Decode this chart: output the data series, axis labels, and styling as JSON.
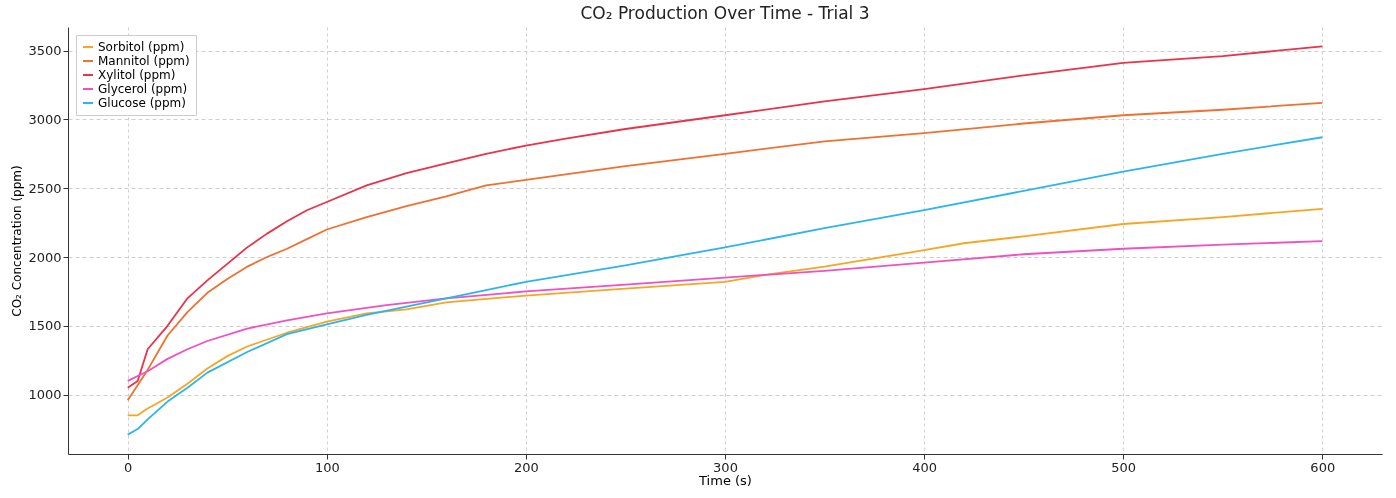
{
  "chart_data": {
    "type": "line",
    "title": "CO₂ Production Over Time - Trial 3",
    "xlabel": "Time (s)",
    "ylabel": "CO₂ Concentration (ppm)",
    "xlim": [
      -30,
      630
    ],
    "xticks": [
      0,
      100,
      200,
      300,
      400,
      500,
      600
    ],
    "ylim": [
      569,
      3671
    ],
    "yticks": [
      1000,
      1500,
      2000,
      2500,
      3000,
      3500
    ],
    "grid": true,
    "legend": "top left",
    "line_style": "solid",
    "marker": "none",
    "series": [
      {
        "name": "Sorbitol (ppm)",
        "color": "#f5a623",
        "x": [
          0,
          5,
          10,
          20,
          30,
          40,
          50,
          60,
          80,
          100,
          120,
          140,
          160,
          200,
          250,
          300,
          320,
          350,
          400,
          420,
          450,
          500,
          550,
          600
        ],
        "values": [
          850,
          850,
          900,
          980,
          1080,
          1190,
          1280,
          1350,
          1450,
          1530,
          1590,
          1620,
          1670,
          1720,
          1770,
          1820,
          1870,
          1930,
          2050,
          2100,
          2150,
          2240,
          2290,
          2350
        ]
      },
      {
        "name": "Mannitol (ppm)",
        "color": "#f07030",
        "x": [
          0,
          10,
          20,
          30,
          40,
          50,
          60,
          70,
          80,
          90,
          100,
          120,
          140,
          160,
          180,
          200,
          250,
          300,
          350,
          400,
          450,
          500,
          550,
          600
        ],
        "values": [
          960,
          1180,
          1430,
          1600,
          1740,
          1840,
          1930,
          2000,
          2060,
          2130,
          2200,
          2290,
          2370,
          2440,
          2520,
          2560,
          2660,
          2750,
          2840,
          2900,
          2970,
          3030,
          3070,
          3120
        ]
      },
      {
        "name": "Xylitol (ppm)",
        "color": "#e8334a",
        "x": [
          0,
          5,
          10,
          20,
          30,
          40,
          50,
          60,
          70,
          80,
          90,
          100,
          120,
          140,
          160,
          180,
          200,
          220,
          250,
          300,
          350,
          400,
          450,
          500,
          550,
          600
        ],
        "values": [
          1050,
          1100,
          1330,
          1500,
          1700,
          1830,
          1950,
          2070,
          2170,
          2260,
          2340,
          2400,
          2520,
          2610,
          2680,
          2750,
          2810,
          2860,
          2930,
          3030,
          3130,
          3220,
          3320,
          3410,
          3460,
          3530
        ]
      },
      {
        "name": "Glycerol (ppm)",
        "color": "#f050c0",
        "x": [
          0,
          10,
          20,
          30,
          40,
          60,
          80,
          100,
          130,
          160,
          200,
          250,
          300,
          350,
          400,
          450,
          500,
          550,
          600
        ],
        "values": [
          1100,
          1170,
          1260,
          1330,
          1390,
          1480,
          1540,
          1590,
          1650,
          1700,
          1750,
          1800,
          1850,
          1900,
          1960,
          2020,
          2060,
          2090,
          2115
        ]
      },
      {
        "name": "Glucose (ppm)",
        "color": "#2bb5ef",
        "x": [
          0,
          5,
          10,
          20,
          30,
          40,
          60,
          80,
          100,
          120,
          140,
          160,
          180,
          200,
          250,
          300,
          350,
          400,
          450,
          500,
          550,
          600
        ],
        "values": [
          710,
          750,
          820,
          950,
          1050,
          1160,
          1310,
          1440,
          1510,
          1580,
          1640,
          1700,
          1760,
          1820,
          1940,
          2070,
          2210,
          2340,
          2480,
          2620,
          2750,
          2870
        ]
      }
    ]
  }
}
